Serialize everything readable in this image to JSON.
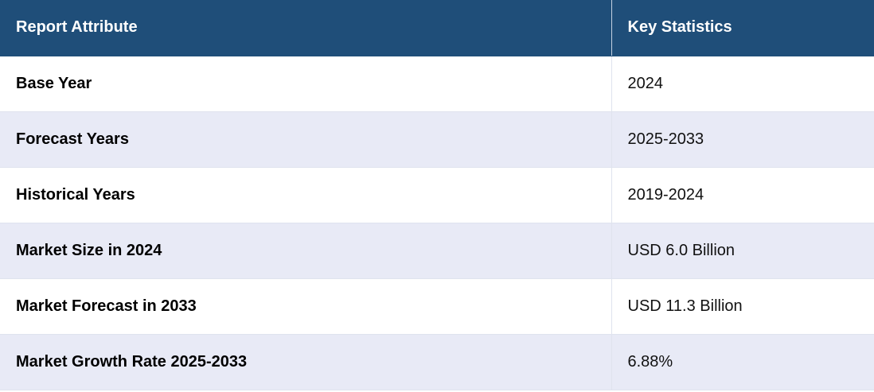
{
  "table": {
    "headers": {
      "attribute": "Report Attribute",
      "statistics": "Key Statistics"
    },
    "rows": [
      {
        "attribute": "Base Year",
        "value": "2024"
      },
      {
        "attribute": "Forecast Years",
        "value": "2025-2033"
      },
      {
        "attribute": "Historical Years",
        "value": "2019-2024"
      },
      {
        "attribute": "Market Size in 2024",
        "value": "USD 6.0 Billion"
      },
      {
        "attribute": "Market Forecast in 2033",
        "value": "USD 11.3 Billion"
      },
      {
        "attribute": "Market Growth Rate 2025-2033",
        "value": "6.88%"
      }
    ]
  },
  "colors": {
    "header_background": "#1f4e79",
    "header_text": "#ffffff",
    "row_odd": "#ffffff",
    "row_even": "#e8eaf6"
  }
}
